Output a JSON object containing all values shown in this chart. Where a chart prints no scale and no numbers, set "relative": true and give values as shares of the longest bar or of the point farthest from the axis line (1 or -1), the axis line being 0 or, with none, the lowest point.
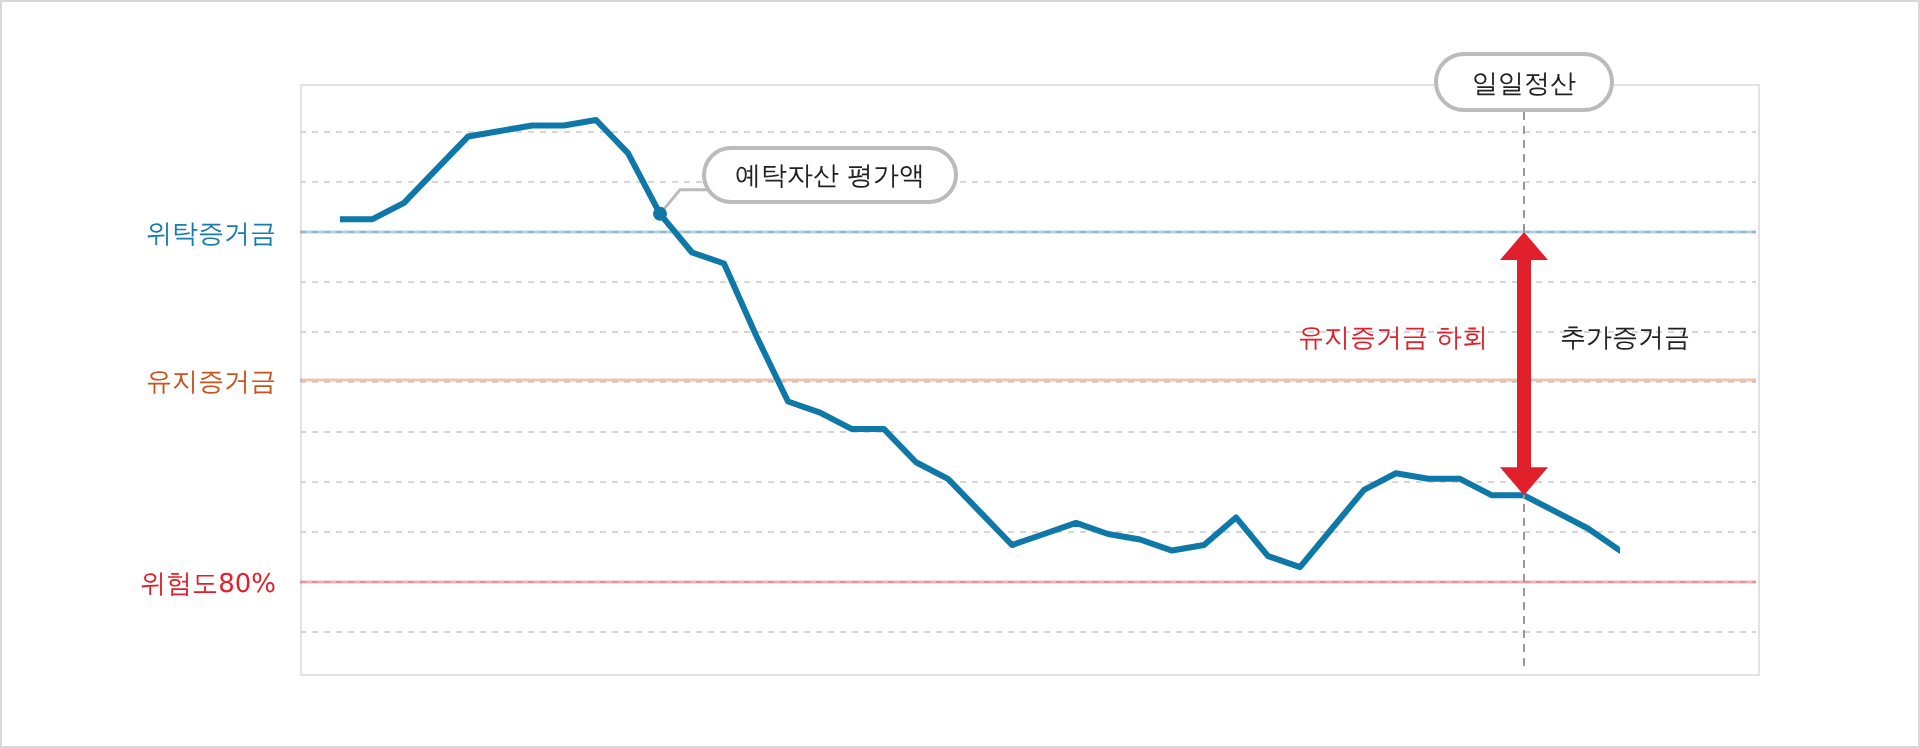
{
  "chart_data": {
    "type": "line",
    "relative": true,
    "categories": [
      null,
      null,
      null,
      null,
      null,
      null,
      null,
      null,
      null,
      null,
      null,
      null,
      null,
      null,
      null,
      null,
      null,
      null,
      null,
      null,
      null,
      null,
      null,
      null,
      null,
      null,
      null,
      null,
      null,
      null,
      null,
      null,
      null,
      null,
      null,
      null,
      null,
      null,
      null,
      null,
      null
    ],
    "series": [
      {
        "color": "#0e78a8",
        "values": [
          0.82,
          0.82,
          0.85,
          0.91,
          0.97,
          0.98,
          0.99,
          0.99,
          1.0,
          0.94,
          0.83,
          0.76,
          0.74,
          0.61,
          0.49,
          0.47,
          0.44,
          0.44,
          0.38,
          0.35,
          0.29,
          0.23,
          0.25,
          0.27,
          0.25,
          0.24,
          0.22,
          0.23,
          0.28,
          0.21,
          0.19,
          0.26,
          0.33,
          0.36,
          0.35,
          0.35,
          0.32,
          0.32,
          0.29,
          0.26,
          0.22
        ]
      }
    ],
    "ref_lines": [
      {
        "axis": "y",
        "value": 0.797,
        "label": "위탁증거금",
        "color": "#1a7bb0"
      },
      {
        "axis": "y",
        "value": 0.529,
        "label": "유지증거금",
        "color": "#c9541c"
      },
      {
        "axis": "y",
        "value": 0.163,
        "label": "위험도80%",
        "color": "#e0202a"
      }
    ],
    "annotations": [
      "예탁자산 평가액",
      "유지증거금 하회",
      "추가증거금",
      "일일정산"
    ],
    "grid": "y",
    "marker": "none",
    "line_style": "solid"
  }
}
